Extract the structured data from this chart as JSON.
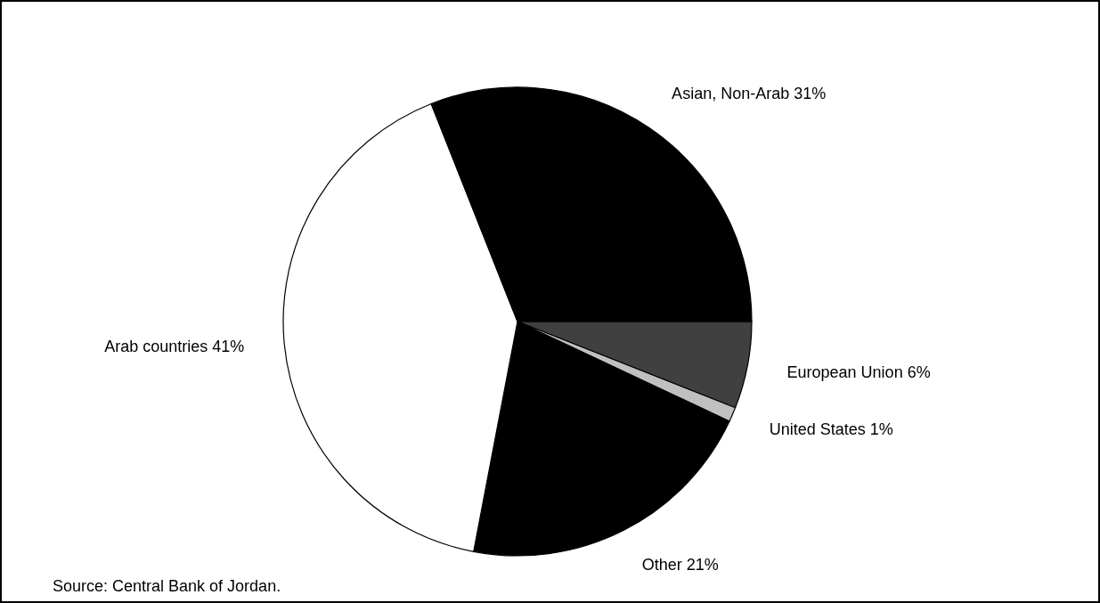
{
  "chart_data": {
    "type": "pie",
    "categories": [
      "European Union",
      "United States",
      "Other",
      "Arab countries",
      "Asian, Non-Arab"
    ],
    "values": [
      6,
      1,
      21,
      41,
      31
    ],
    "colors": [
      "#404040",
      "#c0c0c0",
      "#000000",
      "#ffffff",
      "#000000"
    ],
    "value_labels": [
      "6%",
      "1%",
      "21%",
      "41%",
      "31%"
    ],
    "annotations": [
      "Source:  Central Bank of Jordan."
    ]
  }
}
